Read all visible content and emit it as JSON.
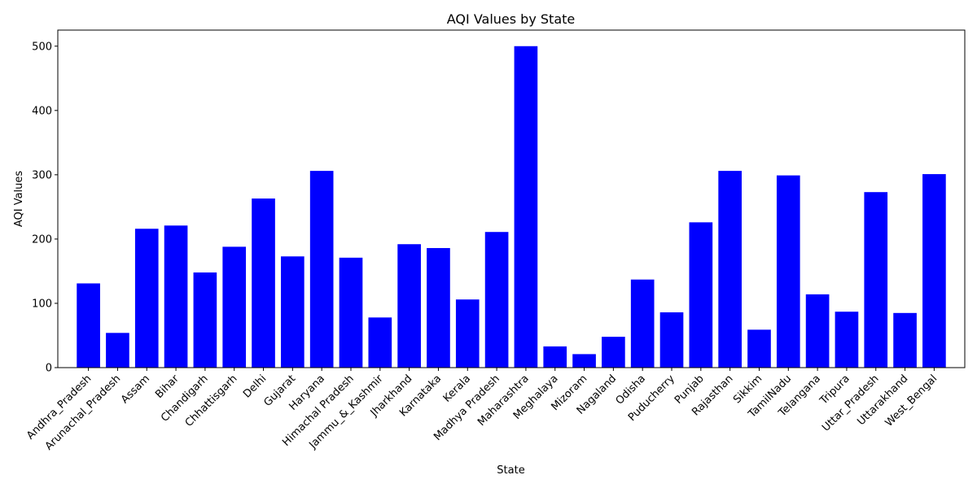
{
  "chart_data": {
    "type": "bar",
    "title": "AQI Values by State",
    "xlabel": "State",
    "ylabel": "AQI Values",
    "ylim": [
      0,
      525
    ],
    "yticks": [
      0,
      100,
      200,
      300,
      400,
      500
    ],
    "grid": false,
    "bar_color": "#0000ff",
    "categories": [
      "Andhra_Pradesh",
      "Arunachal_Pradesh",
      "Assam",
      "Bihar",
      "Chandigarh",
      "Chhattisgarh",
      "Delhi",
      "Gujarat",
      "Haryana",
      "Himachal Pradesh",
      "Jammu_&_Kashmir",
      "Jharkhand",
      "Karnataka",
      "Kerala",
      "Madhya Pradesh",
      "Maharashtra",
      "Meghalaya",
      "Mizoram",
      "Nagaland",
      "Odisha",
      "Puducherry",
      "Punjab",
      "Rajasthan",
      "Sikkim",
      "TamilNadu",
      "Telangana",
      "Tripura",
      "Uttar_Pradesh",
      "Uttarakhand",
      "West_Bengal"
    ],
    "values": [
      131,
      54,
      216,
      221,
      148,
      188,
      263,
      173,
      306,
      171,
      78,
      192,
      186,
      106,
      211,
      500,
      33,
      21,
      48,
      137,
      86,
      226,
      306,
      59,
      299,
      114,
      87,
      273,
      85,
      301
    ]
  }
}
